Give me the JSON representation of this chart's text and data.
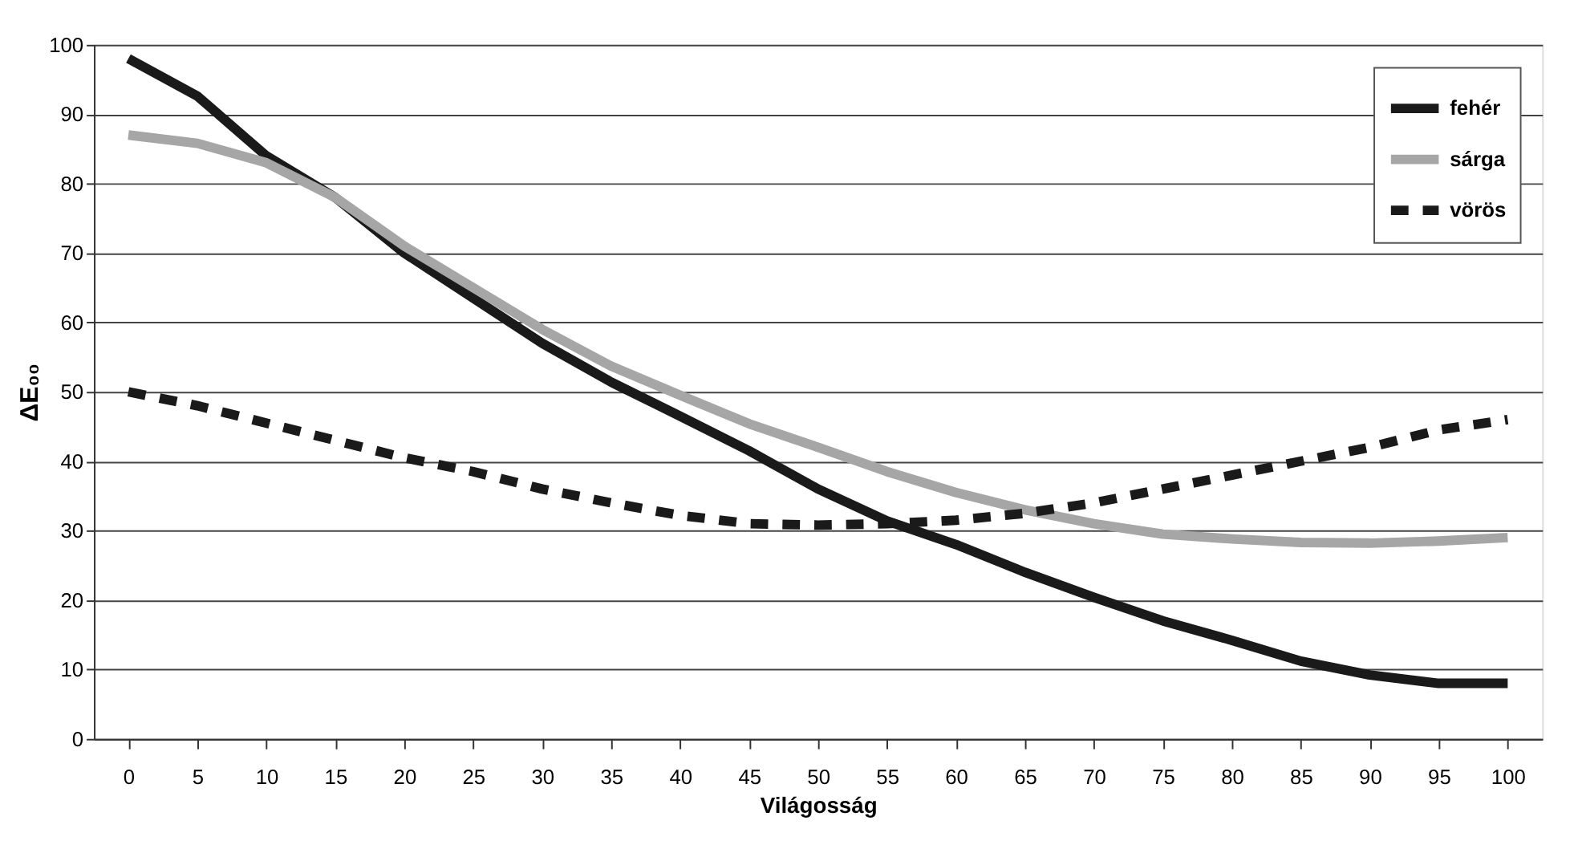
{
  "chart_data": {
    "type": "line",
    "xlabel": "Világosság",
    "ylabel": "ΔE₀₀",
    "categories": [
      "0",
      "5",
      "10",
      "15",
      "20",
      "25",
      "30",
      "35",
      "40",
      "45",
      "50",
      "55",
      "60",
      "65",
      "70",
      "75",
      "80",
      "85",
      "90",
      "95",
      "100"
    ],
    "series": [
      {
        "name": "fehér",
        "color": "#1a1a1a",
        "line_style": "solid",
        "values": [
          98,
          92.6,
          84,
          78,
          70,
          63.5,
          57,
          51.4,
          46.5,
          41.5,
          36,
          31.4,
          28,
          24,
          20.4,
          17,
          14.2,
          11.2,
          9.2,
          8,
          8
        ]
      },
      {
        "name": "sárga",
        "color": "#a6a6a6",
        "line_style": "solid",
        "values": [
          87,
          85.8,
          83,
          78,
          71,
          65,
          59,
          53.7,
          49.5,
          45.4,
          42,
          38.5,
          35.5,
          33,
          31,
          29.5,
          28.8,
          28.3,
          28.2,
          28.5,
          29
        ]
      },
      {
        "name": "vörös",
        "color": "#1a1a1a",
        "line_style": "dashed",
        "values": [
          50,
          48,
          45.5,
          43,
          40.5,
          38.5,
          36,
          34,
          32.2,
          31,
          30.8,
          31,
          31.5,
          32.5,
          34,
          36,
          38,
          40,
          42,
          44.5,
          46
        ]
      }
    ],
    "ylim": [
      0,
      100
    ],
    "yticks": [
      0,
      10,
      20,
      30,
      40,
      50,
      60,
      70,
      80,
      90,
      100
    ],
    "grid": "y",
    "legend": "top right"
  }
}
